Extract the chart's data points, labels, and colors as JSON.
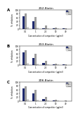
{
  "panels": [
    {
      "title": "2G2-Biotin",
      "label": "A",
      "x_labels": [
        "0.1",
        "1",
        "2.5",
        "10",
        "40"
      ],
      "series": {
        "2G2": [
          68,
          42,
          5,
          4,
          2
        ],
        "2G3": [
          80,
          62,
          18,
          8,
          3
        ],
        "2D6": [
          12,
          8,
          5,
          3,
          1
        ]
      }
    },
    {
      "title": "2G3-Biotin",
      "label": "B",
      "x_labels": [
        "0.1",
        "1",
        "2.5",
        "10",
        "40"
      ],
      "series": {
        "2G2": [
          65,
          38,
          12,
          5,
          2
        ],
        "2G3": [
          78,
          60,
          20,
          8,
          2
        ],
        "2D6": [
          12,
          8,
          4,
          3,
          1
        ]
      }
    },
    {
      "title": "2D6-Biotin",
      "label": "C",
      "x_labels": [
        "0.1",
        "1",
        "2.5",
        "10",
        "40"
      ],
      "series": {
        "2G2": [
          65,
          40,
          10,
          2,
          1
        ],
        "2G3": [
          78,
          58,
          20,
          8,
          3
        ],
        "2D6": [
          10,
          6,
          3,
          2,
          1
        ]
      }
    }
  ],
  "colors": {
    "2G2": "#1f2a6e",
    "2G3": "#9e9e9e",
    "2D6": "#d4d4d4"
  },
  "ylabel": "% inhibition",
  "xlabel": "Concentration of competitor (μg/ml)",
  "ylim": [
    0,
    100
  ],
  "yticks": [
    0,
    20,
    40,
    60,
    80,
    100
  ],
  "legend_labels": [
    "2G2",
    "2G3",
    "2D6"
  ],
  "background_color": "#ffffff"
}
